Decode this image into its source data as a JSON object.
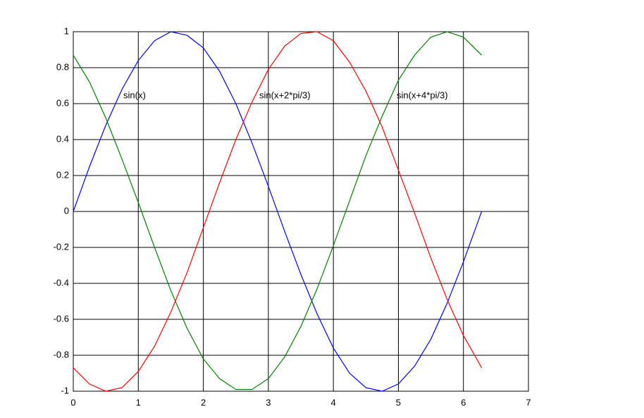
{
  "chart_data": {
    "type": "line",
    "annotations": [
      "sin(x)",
      "sin(x+2*pi/3)",
      "sin(x+4*pi/3)"
    ],
    "x": [
      0,
      0.25,
      0.5,
      0.75,
      1,
      1.25,
      1.5,
      1.75,
      2,
      2.25,
      2.5,
      2.75,
      3,
      3.25,
      3.5,
      3.75,
      4,
      4.25,
      4.5,
      4.75,
      5,
      5.25,
      5.5,
      5.75,
      6,
      6.25,
      6.28
    ],
    "series": [
      {
        "color": "#0000ff",
        "values": [
          0,
          0.25,
          0.48,
          0.68,
          0.84,
          0.95,
          1.0,
          0.98,
          0.91,
          0.78,
          0.6,
          0.38,
          0.14,
          -0.11,
          -0.35,
          -0.57,
          -0.76,
          -0.9,
          -0.98,
          -1.0,
          -0.96,
          -0.86,
          -0.71,
          -0.51,
          -0.28,
          -0.03,
          0
        ]
      },
      {
        "color": "#008000",
        "values": [
          0.87,
          0.72,
          0.52,
          0.29,
          0.05,
          -0.2,
          -0.44,
          -0.65,
          -0.82,
          -0.93,
          -0.99,
          -0.99,
          -0.93,
          -0.81,
          -0.64,
          -0.43,
          -0.19,
          0.06,
          0.31,
          0.53,
          0.73,
          0.87,
          0.97,
          1.0,
          0.97,
          0.88,
          0.87
        ]
      },
      {
        "color": "#ff0000",
        "values": [
          -0.87,
          -0.96,
          -1.0,
          -0.98,
          -0.89,
          -0.75,
          -0.56,
          -0.34,
          -0.09,
          0.16,
          0.4,
          0.61,
          0.79,
          0.92,
          0.99,
          1.0,
          0.95,
          0.83,
          0.67,
          0.47,
          0.23,
          -0.01,
          -0.26,
          -0.49,
          -0.69,
          -0.85,
          -0.87
        ]
      }
    ],
    "xlim": [
      0,
      7
    ],
    "xticks": [
      0,
      1,
      2,
      3,
      4,
      5,
      6,
      7
    ],
    "ylim": [
      -1,
      1
    ],
    "yticks": [
      -1,
      -0.8,
      -0.6,
      -0.4,
      -0.2,
      0,
      0.2,
      0.4,
      0.6,
      0.8,
      1
    ],
    "grid": true
  }
}
